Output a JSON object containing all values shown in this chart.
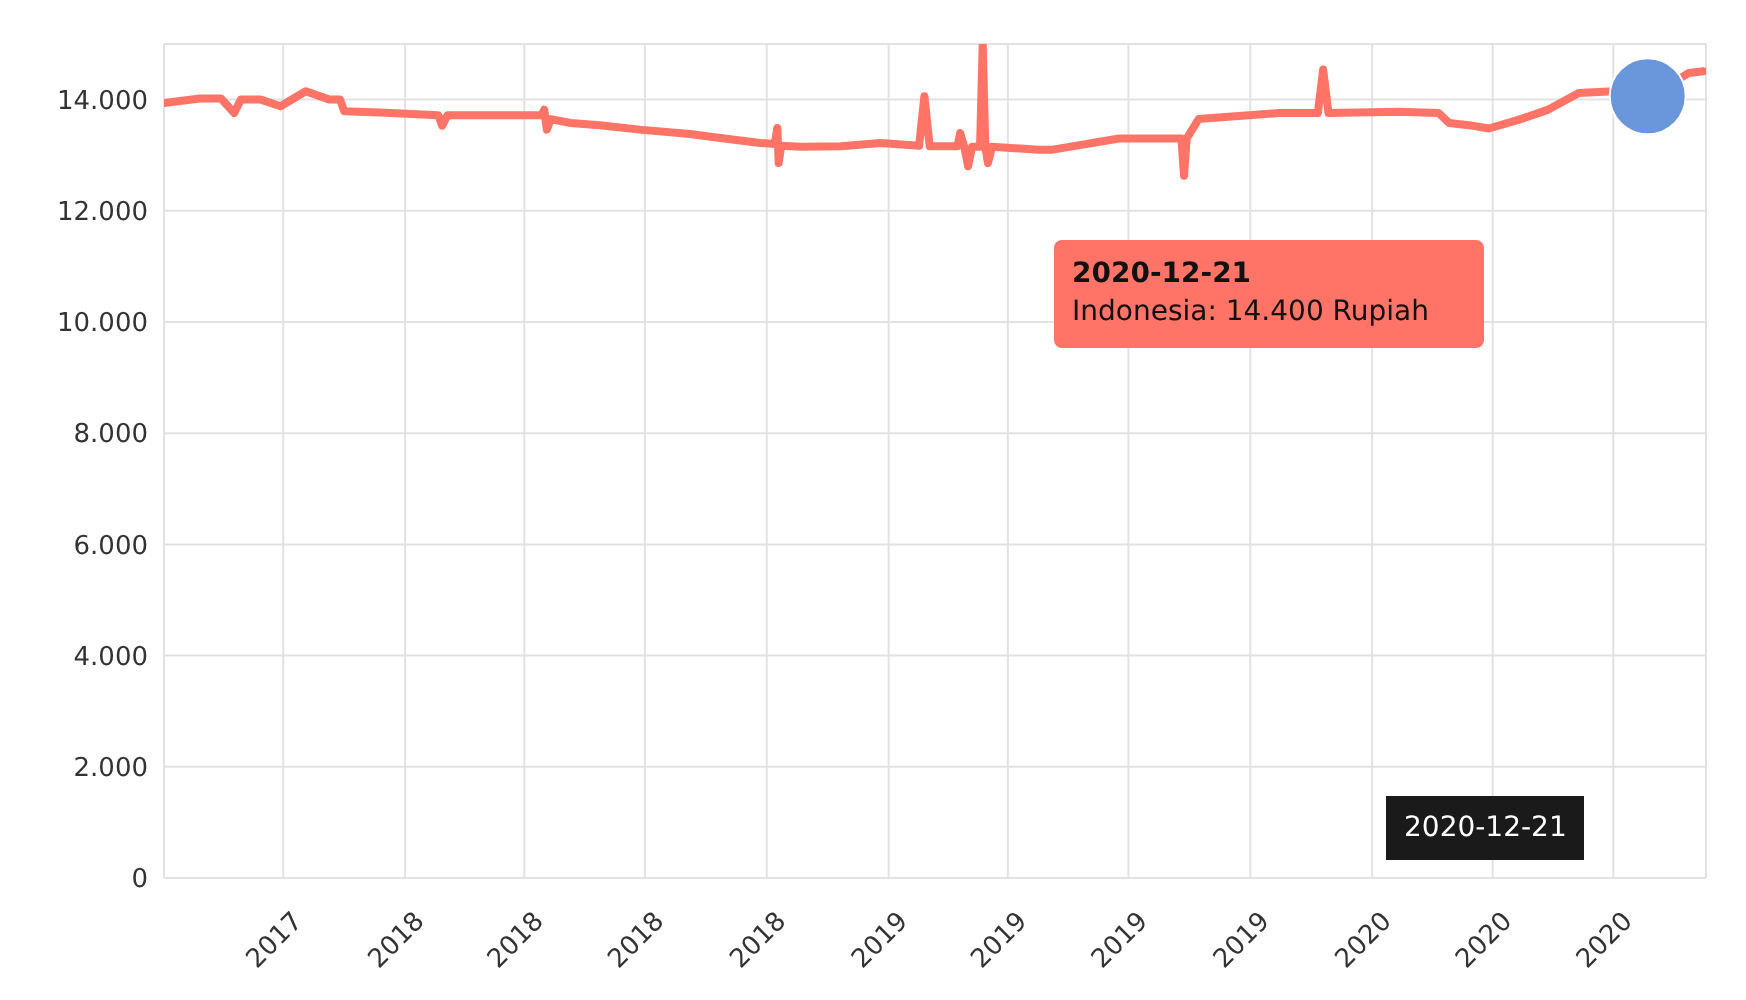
{
  "chart_data": {
    "type": "line",
    "xlim": [
      "2017-07-03",
      "2020-09-09"
    ],
    "xticks": [
      {
        "value": "2017-10-01",
        "label": "2017"
      },
      {
        "value": "2018-01-01",
        "label": "2018"
      },
      {
        "value": "2018-04-01",
        "label": "2018"
      },
      {
        "value": "2018-07-01",
        "label": "2018"
      },
      {
        "value": "2018-10-01",
        "label": "2018"
      },
      {
        "value": "2019-01-01",
        "label": "2019"
      },
      {
        "value": "2019-04-01",
        "label": "2019"
      },
      {
        "value": "2019-07-01",
        "label": "2019"
      },
      {
        "value": "2019-10-01",
        "label": "2019"
      },
      {
        "value": "2020-01-01",
        "label": "2020"
      },
      {
        "value": "2020-04-01",
        "label": "2020"
      },
      {
        "value": "2020-07-01",
        "label": "2020"
      }
    ],
    "ylim": [
      0,
      15000
    ],
    "yticks": [
      0,
      {
        "value": 2000,
        "label": "2.000"
      },
      {
        "value": 4000,
        "label": "4.000"
      },
      {
        "value": 6000,
        "label": "6.000"
      },
      {
        "value": 8000,
        "label": "8.000"
      },
      {
        "value": 10000,
        "label": "10.000"
      },
      {
        "value": 12000,
        "label": "12.000"
      },
      {
        "value": 14000,
        "label": "14.000"
      }
    ],
    "grid": true,
    "line_style": "solid",
    "marker": "none",
    "annotations": [
      "2020-12-21",
      "Indonesia: 14.400 Rupiah",
      "2020-12-21"
    ],
    "series": [
      {
        "color": "#ff7466",
        "x": [
          "2017-07-03",
          "2017-07-30",
          "2017-08-15",
          "2017-08-25",
          "2017-08-30",
          "2017-09-14",
          "2017-09-29",
          "2017-10-18",
          "2017-11-05",
          "2017-11-13",
          "2017-11-16",
          "2017-12-13",
          "2018-01-26",
          "2018-01-29",
          "2018-02-02",
          "2018-03-15",
          "2018-04-14",
          "2018-04-16",
          "2018-04-18",
          "2018-04-21",
          "2018-05-06",
          "2018-05-28",
          "2018-06-27",
          "2018-08-04",
          "2018-08-27",
          "2018-09-26",
          "2018-10-07",
          "2018-10-09",
          "2018-10-10",
          "2018-10-12",
          "2018-10-27",
          "2018-11-26",
          "2018-12-26",
          "2019-01-24",
          "2019-01-28",
          "2019-02-01",
          "2019-02-22",
          "2019-02-24",
          "2019-02-27",
          "2019-03-02",
          "2019-03-05",
          "2019-03-11",
          "2019-03-13",
          "2019-03-15",
          "2019-03-17",
          "2019-03-20",
          "2019-04-24",
          "2019-05-05",
          "2019-06-24",
          "2019-08-10",
          "2019-08-12",
          "2019-08-14",
          "2019-08-23",
          "2019-10-23",
          "2019-11-21",
          "2019-11-25",
          "2019-11-29",
          "2020-01-21",
          "2020-02-20",
          "2020-02-28",
          "2020-03-14",
          "2020-03-29",
          "2020-04-21",
          "2020-05-13",
          "2020-06-05",
          "2020-07-01",
          "2020-08-19",
          "2020-08-27",
          "2020-09-07"
        ],
        "values": [
          13940,
          14020,
          14020,
          13760,
          14000,
          14000,
          13880,
          14150,
          14000,
          14000,
          13790,
          13770,
          13720,
          13530,
          13720,
          13720,
          13720,
          13820,
          13460,
          13650,
          13580,
          13540,
          13460,
          13380,
          13310,
          13220,
          13200,
          13490,
          12860,
          13170,
          13150,
          13160,
          13220,
          13170,
          14060,
          13160,
          13160,
          13400,
          13160,
          12800,
          13150,
          13150,
          15000,
          13150,
          12860,
          13150,
          13100,
          13100,
          13300,
          13300,
          12630,
          13300,
          13650,
          13760,
          13760,
          14540,
          13760,
          13780,
          13760,
          13580,
          13540,
          13480,
          13640,
          13820,
          14120,
          14150,
          14360,
          14480,
          14510
        ]
      },
      {
        "type": "scatter",
        "color": "#6a96dc",
        "marker": "circle",
        "x": [
          "2020-07-27"
        ],
        "values": [
          14060
        ]
      }
    ]
  }
}
